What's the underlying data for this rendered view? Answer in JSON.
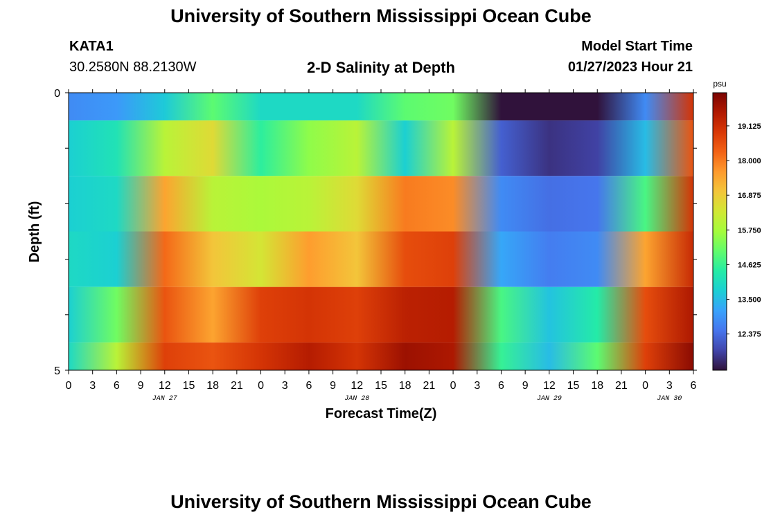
{
  "page": {
    "title_top": "University of Southern Mississippi Ocean Cube",
    "title_bottom": "University of Southern Mississippi Ocean Cube",
    "station_id": "KATA1",
    "station_coords": "30.2580N  88.2130W",
    "chart_subtitle": "2-D Salinity at Depth",
    "model_start_label": "Model Start Time",
    "model_start_value": "01/27/2023 Hour 21"
  },
  "colors": {
    "scale": [
      "#30123b",
      "#4145ab",
      "#4675ed",
      "#39a2fc",
      "#1bcfd4",
      "#24eca6",
      "#61fc6c",
      "#a4fc3b",
      "#d1e834",
      "#f3c63a",
      "#fe9b2d",
      "#f36315",
      "#d93806",
      "#b11901",
      "#7a0402"
    ]
  },
  "chart_data": {
    "type": "heatmap",
    "title": "2-D Salinity at Depth",
    "xlabel": "Forecast Time(Z)",
    "ylabel": "Depth (ft)",
    "colorbar_unit": "psu",
    "colorbar_range": [
      11.2,
      20.2
    ],
    "colorbar_ticks": [
      "19.125",
      "18.000",
      "16.875",
      "15.750",
      "14.625",
      "13.500",
      "12.375"
    ],
    "y_ticks": [
      "0",
      "5"
    ],
    "ylim": [
      0,
      5
    ],
    "x_tick_labels": [
      "0",
      "3",
      "6",
      "9",
      "12",
      "15",
      "18",
      "21",
      "0",
      "3",
      "6",
      "9",
      "12",
      "15",
      "18",
      "21",
      "0",
      "3",
      "6",
      "9",
      "12",
      "15",
      "18",
      "21",
      "0",
      "3",
      "6"
    ],
    "date_labels": [
      {
        "text": "JAN 27",
        "tick_index": 4
      },
      {
        "text": "JAN 28",
        "tick_index": 12
      },
      {
        "text": "JAN 29",
        "tick_index": 20
      },
      {
        "text": "JAN 30",
        "tick_index": 25
      }
    ],
    "x_hours": [
      0,
      6,
      12,
      18,
      24,
      30,
      36,
      42,
      48,
      54,
      60,
      66,
      72,
      78
    ],
    "depth_layers": [
      {
        "depth_bin": "0-0.5 ft",
        "values": [
          12.8,
          13.0,
          13.7,
          15.0,
          14.0,
          14.0,
          14.0,
          15.0,
          15.2,
          11.0,
          10.8,
          11.0,
          12.8,
          19.0
        ]
      },
      {
        "depth_bin": "0.5-1.5 ft",
        "values": [
          13.8,
          14.2,
          16.0,
          16.6,
          14.5,
          15.5,
          16.0,
          13.8,
          16.0,
          12.2,
          11.6,
          11.8,
          13.5,
          18.5
        ]
      },
      {
        "depth_bin": "1.5-2.5 ft",
        "values": [
          13.8,
          14.0,
          17.5,
          16.0,
          15.8,
          16.0,
          16.6,
          18.0,
          17.8,
          12.8,
          12.4,
          12.5,
          14.8,
          19.0
        ]
      },
      {
        "depth_bin": "2.5-3.5 ft",
        "values": [
          14.0,
          13.8,
          18.2,
          17.0,
          16.4,
          17.6,
          17.0,
          18.6,
          18.8,
          13.2,
          12.6,
          12.8,
          17.5,
          19.2
        ]
      },
      {
        "depth_bin": "3.5-4.5 ft",
        "values": [
          13.8,
          15.2,
          18.5,
          17.5,
          18.8,
          19.0,
          18.8,
          19.4,
          19.5,
          14.8,
          13.6,
          14.4,
          18.6,
          19.6
        ]
      },
      {
        "depth_bin": "4.5-5 ft",
        "values": [
          14.0,
          16.0,
          18.8,
          18.5,
          19.0,
          19.5,
          19.0,
          19.8,
          19.6,
          14.6,
          13.5,
          15.0,
          18.8,
          20.0
        ]
      }
    ]
  }
}
